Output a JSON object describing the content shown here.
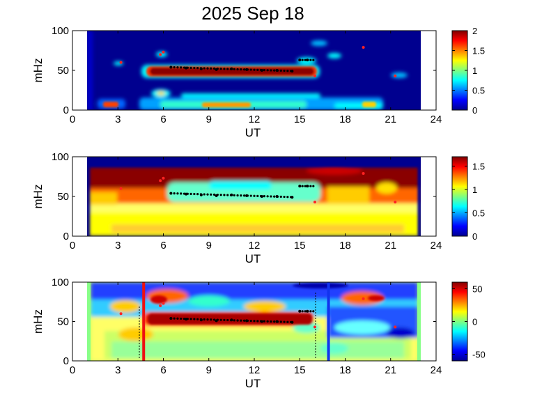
{
  "title": "2025 Sep 18",
  "chart_data": [
    {
      "type": "heatmap",
      "panel": "top",
      "xlabel": "UT",
      "ylabel": "mHz",
      "xlim": [
        0,
        24
      ],
      "ylim": [
        0,
        100
      ],
      "xticks": [
        "0",
        "3",
        "6",
        "9",
        "12",
        "15",
        "18",
        "21",
        "24"
      ],
      "yticks": [
        "0",
        "50",
        "100"
      ],
      "data_x_range": [
        1,
        23
      ],
      "colorbar": {
        "range": [
          0,
          2
        ],
        "ticks": [
          "0",
          "0.5",
          "1",
          "1.5",
          "2"
        ]
      },
      "features": [
        {
          "kind": "band",
          "x": [
            5,
            16
          ],
          "y": 50,
          "value": 2
        },
        {
          "kind": "band",
          "x": [
            5.5,
            19.5
          ],
          "y": 10,
          "value": 0.8
        },
        {
          "kind": "band",
          "x": [
            1.5,
            3.5
          ],
          "y": 7,
          "value": 1.5
        }
      ],
      "markers_black": [
        [
          6.5,
          54
        ],
        [
          7.5,
          53
        ],
        [
          8.5,
          52
        ],
        [
          9.5,
          51
        ],
        [
          10.5,
          52
        ],
        [
          11.5,
          51
        ],
        [
          12.5,
          50
        ],
        [
          13.5,
          50
        ],
        [
          14.5,
          49
        ],
        [
          15,
          63
        ],
        [
          15.5,
          63
        ]
      ],
      "markers_red": [
        [
          3.2,
          60
        ],
        [
          5.8,
          70
        ],
        [
          6,
          73
        ],
        [
          16,
          43
        ],
        [
          19.2,
          79
        ],
        [
          21.3,
          43
        ]
      ]
    },
    {
      "type": "heatmap",
      "panel": "middle",
      "xlabel": "UT",
      "ylabel": "mHz",
      "xlim": [
        0,
        24
      ],
      "ylim": [
        0,
        100
      ],
      "xticks": [
        "0",
        "3",
        "6",
        "9",
        "12",
        "15",
        "18",
        "21",
        "24"
      ],
      "yticks": [
        "0",
        "50",
        "100"
      ],
      "data_x_range": [
        1,
        23
      ],
      "colorbar": {
        "range": [
          0,
          1.7
        ],
        "ticks": [
          "0",
          "0.5",
          "1",
          "1.5"
        ]
      },
      "markers_black": [
        [
          6.5,
          54
        ],
        [
          7.5,
          53
        ],
        [
          8.5,
          52
        ],
        [
          9.5,
          51
        ],
        [
          10.5,
          52
        ],
        [
          11.5,
          51
        ],
        [
          12.5,
          50
        ],
        [
          13.5,
          50
        ],
        [
          14.5,
          49
        ],
        [
          15,
          63
        ],
        [
          15.5,
          63
        ]
      ],
      "markers_red": [
        [
          3.2,
          60
        ],
        [
          5.8,
          70
        ],
        [
          6,
          73
        ],
        [
          16,
          43
        ],
        [
          19.2,
          79
        ],
        [
          21.3,
          43
        ]
      ]
    },
    {
      "type": "heatmap",
      "panel": "bottom",
      "xlabel": "UT",
      "ylabel": "mHz",
      "xlim": [
        0,
        24
      ],
      "ylim": [
        0,
        100
      ],
      "xticks": [
        "0",
        "3",
        "6",
        "9",
        "12",
        "15",
        "18",
        "21",
        "24"
      ],
      "yticks": [
        "0",
        "50",
        "100"
      ],
      "data_x_range": [
        1,
        23
      ],
      "colorbar": {
        "range": [
          -60,
          60
        ],
        "ticks": [
          "-50",
          "0",
          "50"
        ]
      },
      "vertical_lines": [
        {
          "x": 4.7,
          "color": "#ee1111"
        },
        {
          "x": 16.9,
          "color": "#1133ee"
        }
      ],
      "markers_black": [
        [
          6.5,
          54
        ],
        [
          7.5,
          53
        ],
        [
          8.5,
          52
        ],
        [
          9.5,
          51
        ],
        [
          10.5,
          52
        ],
        [
          11.5,
          51
        ],
        [
          12.5,
          50
        ],
        [
          13.5,
          50
        ],
        [
          14.5,
          49
        ],
        [
          15,
          63
        ],
        [
          15.5,
          63
        ]
      ],
      "markers_red": [
        [
          3.2,
          60
        ],
        [
          5.8,
          70
        ],
        [
          6,
          73
        ],
        [
          16,
          43
        ],
        [
          19.2,
          79
        ],
        [
          21.3,
          43
        ]
      ]
    }
  ]
}
